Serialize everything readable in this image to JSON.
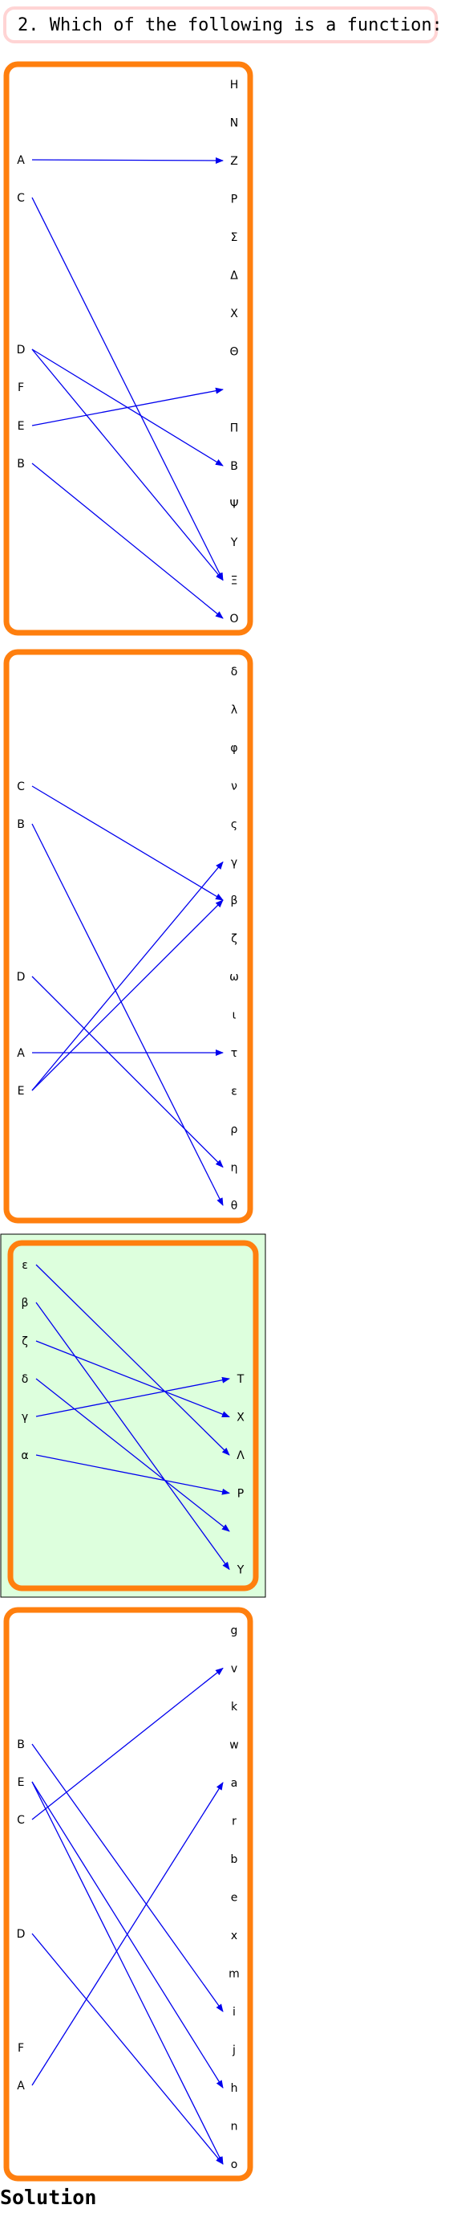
{
  "question": "2. Which of the following is a function:",
  "solution_label": "Solution",
  "colors": {
    "box_border": "#ff7f0e",
    "arrow": "#0000ee",
    "answer_highlight_bg": "#ddffdd",
    "question_border": "#ffd4d4"
  },
  "diagrams": [
    {
      "id": "option-1",
      "domain": [
        "A",
        "C",
        "D",
        "F",
        "E",
        "B"
      ],
      "codomain": [
        "H",
        "N",
        "Z",
        "P",
        "Σ",
        "Δ",
        "X",
        "Θ",
        "",
        "Π",
        "B",
        "Ψ",
        "Y",
        "Ξ",
        "O"
      ],
      "arrows": [
        {
          "from": "A",
          "to": "Z"
        },
        {
          "from": "C",
          "to": "Ξ"
        },
        {
          "from": "D",
          "to": "B"
        },
        {
          "from": "D",
          "to": "Ξ"
        },
        {
          "from": "E",
          "to": ""
        },
        {
          "from": "B",
          "to": "O"
        }
      ]
    },
    {
      "id": "option-2",
      "domain": [
        "C",
        "B",
        "D",
        "A",
        "E"
      ],
      "codomain": [
        "δ",
        "λ",
        "φ",
        "ν",
        "ς",
        "γ",
        "β",
        "ζ",
        "ω",
        "ι",
        "τ",
        "ε",
        "ρ",
        "η",
        "θ"
      ],
      "arrows": [
        {
          "from": "C",
          "to": "β"
        },
        {
          "from": "B",
          "to": "θ"
        },
        {
          "from": "D",
          "to": "η"
        },
        {
          "from": "A",
          "to": "τ"
        },
        {
          "from": "E",
          "to": "γ"
        },
        {
          "from": "E",
          "to": "β"
        }
      ]
    },
    {
      "id": "option-3",
      "is_answer": true,
      "domain": [
        "ε",
        "β",
        "ζ",
        "δ",
        "γ",
        "α"
      ],
      "codomain": [
        "T",
        "X",
        "Λ",
        "P",
        "",
        "Y"
      ],
      "arrows": [
        {
          "from": "ε",
          "to": "Λ"
        },
        {
          "from": "β",
          "to": "Y"
        },
        {
          "from": "ζ",
          "to": "X"
        },
        {
          "from": "δ",
          "to": ""
        },
        {
          "from": "γ",
          "to": "T"
        },
        {
          "from": "α",
          "to": "P"
        }
      ]
    },
    {
      "id": "option-4",
      "domain": [
        "B",
        "E",
        "C",
        "D",
        "F",
        "A"
      ],
      "codomain": [
        "g",
        "v",
        "k",
        "w",
        "a",
        "r",
        "b",
        "e",
        "x",
        "m",
        "i",
        "j",
        "h",
        "n",
        "o"
      ],
      "arrows": [
        {
          "from": "B",
          "to": "i"
        },
        {
          "from": "E",
          "to": "h"
        },
        {
          "from": "E",
          "to": "o"
        },
        {
          "from": "C",
          "to": "v"
        },
        {
          "from": "D",
          "to": "o"
        },
        {
          "from": "A",
          "to": "a"
        }
      ]
    }
  ]
}
